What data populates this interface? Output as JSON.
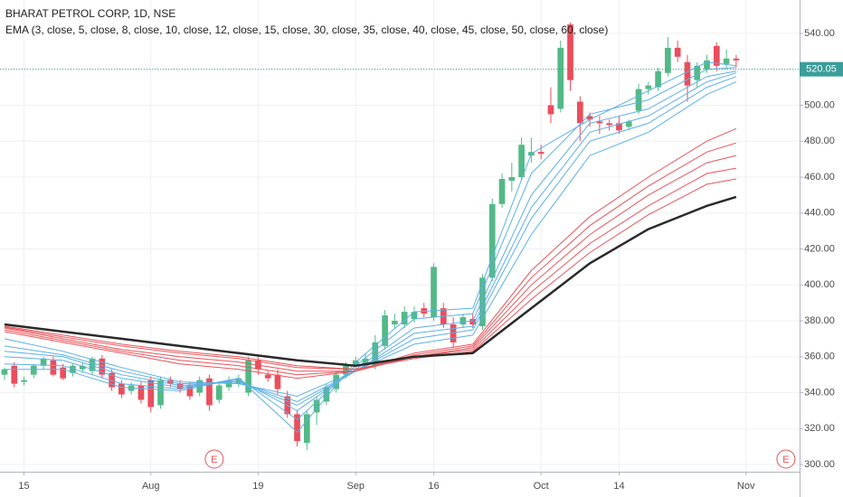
{
  "chart_data": {
    "type": "candlestick",
    "title": "BHARAT PETROL CORP, 1D, NSE",
    "indicator_label": "EMA (3, close, 5, close, 8, close, 10, close, 12, close, 15, close, 30, close, 35, close, 40, close, 45, close, 50, close, 60, close)",
    "candles": [
      [
        350,
        354,
        347,
        353
      ],
      [
        355,
        357,
        343,
        345
      ],
      [
        346,
        349,
        344,
        347
      ],
      [
        350,
        356,
        348,
        355
      ],
      [
        355,
        360,
        353,
        359
      ],
      [
        358,
        360,
        349,
        350
      ],
      [
        354,
        356,
        347,
        348
      ],
      [
        351,
        356,
        349,
        355
      ],
      [
        353,
        357,
        351,
        355
      ],
      [
        352,
        360,
        350,
        359
      ],
      [
        359,
        361,
        348,
        350
      ],
      [
        351,
        353,
        341,
        343
      ],
      [
        345,
        347,
        337,
        339
      ],
      [
        341,
        346,
        339,
        344
      ],
      [
        344,
        346,
        334,
        336
      ],
      [
        347,
        349,
        329,
        332
      ],
      [
        333,
        349,
        331,
        347
      ],
      [
        347,
        349,
        343,
        345
      ],
      [
        345,
        347,
        340,
        342
      ],
      [
        344,
        346,
        336,
        338
      ],
      [
        340,
        349,
        338,
        347
      ],
      [
        348,
        350,
        330,
        333
      ],
      [
        336,
        346,
        334,
        344
      ],
      [
        343,
        349,
        341,
        347
      ],
      [
        345,
        350,
        343,
        348
      ],
      [
        340,
        360,
        338,
        358
      ],
      [
        358,
        360,
        350,
        353
      ],
      [
        350,
        352,
        346,
        348
      ],
      [
        350,
        353,
        339,
        342
      ],
      [
        338,
        341,
        326,
        328
      ],
      [
        328,
        330,
        310,
        313
      ],
      [
        312,
        330,
        308,
        328
      ],
      [
        329,
        338,
        322,
        336
      ],
      [
        335,
        345,
        333,
        343
      ],
      [
        342,
        352,
        340,
        350
      ],
      [
        350,
        357,
        348,
        355
      ],
      [
        355,
        360,
        353,
        358
      ],
      [
        356,
        362,
        354,
        359
      ],
      [
        355,
        372,
        353,
        368
      ],
      [
        366,
        386,
        364,
        383
      ],
      [
        378,
        384,
        376,
        380
      ],
      [
        378,
        388,
        376,
        385
      ],
      [
        381,
        388,
        379,
        385
      ],
      [
        387,
        390,
        382,
        384
      ],
      [
        382,
        412,
        380,
        410
      ],
      [
        387,
        390,
        376,
        378
      ],
      [
        378,
        382,
        365,
        368
      ],
      [
        378,
        384,
        376,
        382
      ],
      [
        381,
        384,
        376,
        378
      ],
      [
        377,
        406,
        375,
        404
      ],
      [
        404,
        448,
        402,
        445
      ],
      [
        445,
        462,
        443,
        459
      ],
      [
        458,
        468,
        452,
        460
      ],
      [
        460,
        482,
        458,
        478
      ],
      [
        472,
        482,
        468,
        474
      ],
      [
        474,
        478,
        470,
        473
      ],
      [
        500,
        510,
        490,
        495
      ],
      [
        498,
        536,
        496,
        532
      ],
      [
        545,
        546,
        508,
        514
      ],
      [
        502,
        505,
        480,
        490
      ],
      [
        494,
        496,
        488,
        492
      ],
      [
        491,
        494,
        484,
        490
      ],
      [
        490,
        492,
        486,
        489
      ],
      [
        490,
        494,
        484,
        486
      ],
      [
        488,
        492,
        486,
        491
      ],
      [
        497,
        512,
        495,
        509
      ],
      [
        509,
        513,
        506,
        511
      ],
      [
        510,
        521,
        508,
        519
      ],
      [
        518,
        538,
        516,
        532
      ],
      [
        532,
        536,
        524,
        527
      ],
      [
        524,
        528,
        502,
        511
      ],
      [
        514,
        524,
        510,
        522
      ],
      [
        520,
        528,
        518,
        525
      ],
      [
        533,
        535,
        519,
        522
      ],
      [
        523,
        531,
        521,
        526
      ],
      [
        526,
        528,
        521,
        525
      ]
    ],
    "up_color": "#53b987",
    "down_color": "#eb4d5c",
    "x": [
      0,
      6,
      12,
      18,
      24,
      30,
      36,
      42,
      48,
      54,
      60,
      66,
      72,
      75
    ],
    "series": [
      {
        "color": "#5db0e6",
        "width": 1,
        "values": [
          353,
          353,
          343,
          341,
          348,
          318,
          357,
          385,
          387,
          473,
          492,
          508,
          524,
          522
        ]
      },
      {
        "color": "#5db0e6",
        "width": 1,
        "values": [
          356,
          355,
          345,
          342,
          348,
          325,
          355,
          381,
          384,
          462,
          495,
          503,
          520,
          521
        ]
      },
      {
        "color": "#5db0e6",
        "width": 1,
        "values": [
          360,
          358,
          348,
          343,
          347,
          330,
          353,
          376,
          380,
          450,
          490,
          498,
          516,
          519
        ]
      },
      {
        "color": "#5db0e6",
        "width": 1,
        "values": [
          363,
          360,
          350,
          344,
          346,
          333,
          352,
          373,
          377,
          443,
          485,
          494,
          513,
          518
        ]
      },
      {
        "color": "#5db0e6",
        "width": 1,
        "values": [
          366,
          361,
          352,
          345,
          346,
          335,
          352,
          370,
          375,
          437,
          480,
          490,
          510,
          516
        ]
      },
      {
        "color": "#5db0e6",
        "width": 1,
        "values": [
          370,
          363,
          354,
          346,
          345,
          338,
          352,
          367,
          372,
          428,
          472,
          485,
          506,
          513
        ]
      },
      {
        "color": "#e9545a",
        "width": 1,
        "values": [
          374,
          368,
          362,
          356,
          353,
          348,
          352,
          362,
          367,
          408,
          438,
          460,
          480,
          487
        ]
      },
      {
        "color": "#e9545a",
        "width": 1,
        "values": [
          375,
          369,
          363,
          358,
          355,
          350,
          352,
          361,
          366,
          404,
          433,
          455,
          474,
          479
        ]
      },
      {
        "color": "#e9545a",
        "width": 1,
        "values": [
          376,
          370,
          364,
          360,
          357,
          352,
          352,
          360,
          365,
          400,
          428,
          450,
          468,
          472
        ]
      },
      {
        "color": "#e9545a",
        "width": 1,
        "values": [
          376.5,
          371,
          366,
          362,
          359,
          354,
          353,
          360,
          364,
          396,
          423,
          444,
          462,
          465
        ]
      },
      {
        "color": "#e9545a",
        "width": 1,
        "values": [
          377,
          372,
          367,
          363,
          360,
          355,
          353,
          359,
          363,
          392,
          418,
          439,
          456,
          459
        ]
      },
      {
        "color": "#2a2a2a",
        "width": 2.5,
        "values": [
          378,
          374,
          370,
          366,
          362,
          358,
          355,
          360,
          362,
          387,
          412,
          431,
          444,
          449
        ]
      }
    ],
    "last_price": 520.05,
    "last_price_color": "#3a9e9a",
    "events": [
      {
        "index": 21.5,
        "label": "E"
      },
      {
        "index": 80.1,
        "label": "E"
      }
    ],
    "event_color": "#e9545a",
    "xlim": [
      -0.46,
      81.5
    ],
    "xticks": [
      {
        "value": 2,
        "label": "15"
      },
      {
        "value": 15,
        "label": "Aug"
      },
      {
        "value": 26,
        "label": "19"
      },
      {
        "value": 36,
        "label": "Sep"
      },
      {
        "value": 44,
        "label": "16"
      },
      {
        "value": 55,
        "label": "Oct"
      },
      {
        "value": 63,
        "label": "14"
      },
      {
        "value": 76,
        "label": "Nov"
      }
    ],
    "ylim": [
      296,
      558.6
    ],
    "yticks": [
      {
        "value": 300,
        "label": "300.00"
      },
      {
        "value": 320,
        "label": "320.00"
      },
      {
        "value": 340,
        "label": "340.00"
      },
      {
        "value": 360,
        "label": "360.00"
      },
      {
        "value": 380,
        "label": "380.00"
      },
      {
        "value": 400,
        "label": "400.00"
      },
      {
        "value": 420,
        "label": "420.00"
      },
      {
        "value": 440,
        "label": "440.00"
      },
      {
        "value": 460,
        "label": "460.00"
      },
      {
        "value": 480,
        "label": "480.00"
      },
      {
        "value": 500,
        "label": "500.00"
      },
      {
        "value": 520,
        "label": "520.00"
      },
      {
        "value": 540,
        "label": "540.00"
      }
    ],
    "grid": true
  }
}
